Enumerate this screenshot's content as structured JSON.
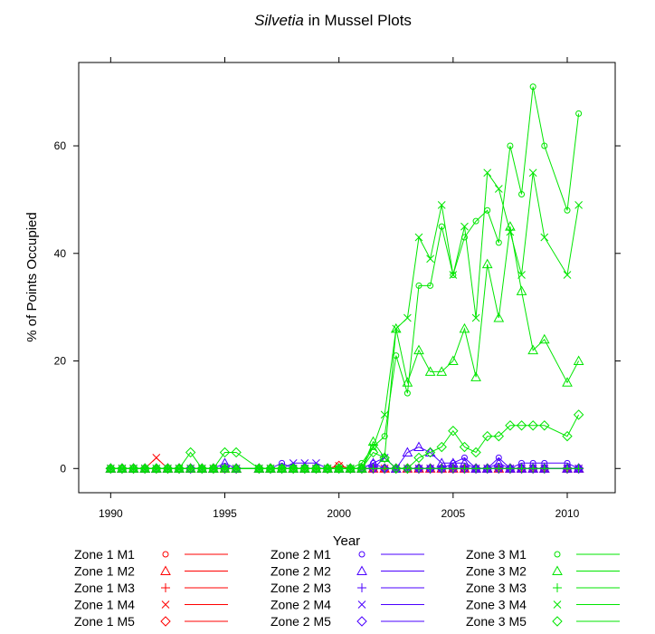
{
  "chart_data": {
    "type": "line",
    "title_italic": "Silvetia",
    "title_rest": " in Mussel Plots",
    "xlabel": "Year",
    "ylabel": "% of Points Occupied",
    "xlim": [
      1988.6,
      2012.1
    ],
    "ylim": [
      -4.5,
      75.5
    ],
    "xticks": [
      1990,
      1995,
      2000,
      2005,
      2010
    ],
    "yticks": [
      0,
      20,
      40,
      60
    ],
    "colors": {
      "zone1": "#ff0000",
      "zone2": "#4b00ff",
      "zone3": "#00e600"
    },
    "legend": [
      {
        "label": "Zone 1 M1",
        "zone": "zone1",
        "marker": "circle"
      },
      {
        "label": "Zone 1 M2",
        "zone": "zone1",
        "marker": "triangle"
      },
      {
        "label": "Zone 1 M3",
        "zone": "zone1",
        "marker": "plus"
      },
      {
        "label": "Zone 1 M4",
        "zone": "zone1",
        "marker": "cross"
      },
      {
        "label": "Zone 1 M5",
        "zone": "zone1",
        "marker": "diamond"
      },
      {
        "label": "Zone 2 M1",
        "zone": "zone2",
        "marker": "circle"
      },
      {
        "label": "Zone 2 M2",
        "zone": "zone2",
        "marker": "triangle"
      },
      {
        "label": "Zone 2 M3",
        "zone": "zone2",
        "marker": "plus"
      },
      {
        "label": "Zone 2 M4",
        "zone": "zone2",
        "marker": "cross"
      },
      {
        "label": "Zone 2 M5",
        "zone": "zone2",
        "marker": "diamond"
      },
      {
        "label": "Zone 3 M1",
        "zone": "zone3",
        "marker": "circle"
      },
      {
        "label": "Zone 3 M2",
        "zone": "zone3",
        "marker": "triangle"
      },
      {
        "label": "Zone 3 M3",
        "zone": "zone3",
        "marker": "plus"
      },
      {
        "label": "Zone 3 M4",
        "zone": "zone3",
        "marker": "cross"
      },
      {
        "label": "Zone 3 M5",
        "zone": "zone3",
        "marker": "diamond"
      }
    ],
    "x": [
      1990,
      1990.5,
      1991,
      1991.5,
      1992,
      1992.5,
      1993,
      1993.5,
      1994,
      1994.5,
      1995,
      1995.5,
      1996.5,
      1997,
      1997.5,
      1998,
      1998.5,
      1999,
      1999.5,
      2000,
      2000.5,
      2001,
      2001.5,
      2002,
      2002.5,
      2003,
      2003.5,
      2004,
      2004.5,
      2005,
      2005.5,
      2006,
      2006.5,
      2007,
      2007.5,
      2008,
      2008.5,
      2009,
      2010,
      2010.5
    ],
    "series": [
      {
        "name": "Zone 1 M1",
        "values": [
          0,
          0,
          0,
          0,
          0,
          0,
          0,
          0,
          0,
          0,
          0,
          0,
          0,
          0,
          0,
          0,
          0,
          0,
          0,
          0,
          0,
          0,
          0,
          0,
          0,
          0,
          0,
          0,
          0,
          0,
          0,
          0,
          0,
          0,
          0,
          0,
          0,
          0,
          0,
          0
        ]
      },
      {
        "name": "Zone 1 M2",
        "values": [
          0,
          0,
          0,
          0,
          0,
          0,
          0,
          0,
          0,
          0,
          0,
          0,
          0,
          0,
          0,
          0,
          0,
          0,
          0,
          0,
          0,
          0,
          0,
          0,
          0,
          0,
          0,
          0,
          0,
          0,
          0,
          0,
          0,
          0,
          0,
          0,
          0,
          0,
          0,
          0
        ]
      },
      {
        "name": "Zone 1 M3",
        "values": [
          0,
          0,
          0,
          0,
          0,
          0,
          0,
          0,
          0,
          0,
          0,
          0,
          0,
          0,
          0,
          0,
          0,
          0,
          0,
          0,
          0,
          0,
          0,
          0,
          0,
          0,
          0,
          0,
          0,
          0,
          0,
          0,
          0,
          0,
          0,
          0,
          0,
          0,
          0,
          0
        ]
      },
      {
        "name": "Zone 1 M4",
        "values": [
          0,
          0,
          0,
          0,
          2,
          0,
          0,
          0,
          0,
          0,
          0,
          0,
          0,
          0,
          0,
          0,
          0,
          0,
          0,
          0.5,
          0,
          0,
          0,
          0,
          0,
          0,
          0,
          0,
          0,
          0,
          0,
          0,
          0,
          0,
          0,
          0,
          0,
          0,
          0,
          0
        ]
      },
      {
        "name": "Zone 1 M5",
        "values": [
          0,
          0,
          0,
          0,
          0,
          0,
          0,
          0,
          0,
          0,
          0,
          0,
          0,
          0,
          0,
          0,
          0,
          0,
          0,
          0.5,
          0,
          0,
          0,
          0,
          0,
          0,
          0,
          0,
          0,
          0,
          0,
          0,
          0,
          0,
          0,
          0,
          0,
          0,
          0,
          0
        ]
      },
      {
        "name": "Zone 2 M1",
        "values": [
          0,
          0,
          0,
          0,
          0,
          0,
          0,
          0,
          0,
          0,
          0,
          0,
          0,
          0,
          1,
          0,
          0,
          0,
          0,
          0,
          0,
          0,
          1,
          0,
          0,
          0,
          0,
          0,
          0,
          1,
          2,
          0,
          0,
          2,
          0,
          1,
          1,
          1,
          1,
          0
        ]
      },
      {
        "name": "Zone 2 M2",
        "values": [
          0,
          0,
          0,
          0,
          0,
          0,
          0,
          0,
          0,
          0,
          1,
          0,
          0,
          0,
          0,
          0,
          0,
          0,
          0,
          0,
          0,
          0,
          1,
          2,
          0,
          3,
          4,
          3,
          1,
          1,
          1,
          0,
          0,
          1,
          0,
          0,
          0,
          0,
          0,
          0
        ]
      },
      {
        "name": "Zone 2 M3",
        "values": [
          0,
          0,
          0,
          0,
          0,
          0,
          0,
          0,
          0,
          0,
          0,
          0,
          0,
          0,
          0,
          0,
          0,
          0,
          0,
          0,
          0,
          0,
          0,
          0,
          0,
          0,
          0,
          0,
          0,
          0,
          0,
          0,
          0,
          0,
          0,
          0,
          0,
          0,
          0,
          0
        ]
      },
      {
        "name": "Zone 2 M4",
        "values": [
          0,
          0,
          0,
          0,
          0,
          0,
          0,
          0,
          0,
          0,
          0,
          0,
          0,
          0,
          0,
          1,
          1,
          1,
          0,
          0,
          0,
          0,
          0,
          2,
          0,
          0,
          0,
          0,
          0,
          0,
          0,
          0,
          0,
          0,
          0,
          0,
          0,
          0,
          0,
          0
        ]
      },
      {
        "name": "Zone 2 M5",
        "values": [
          0,
          0,
          0,
          0,
          0,
          0,
          0,
          0,
          0,
          0,
          0,
          0,
          0,
          0,
          0,
          0,
          0,
          0,
          0,
          0,
          0,
          0,
          0,
          0,
          0,
          0,
          0,
          0,
          0,
          0,
          0,
          0,
          0,
          0,
          0,
          0,
          0,
          0,
          0,
          0
        ]
      },
      {
        "name": "Zone 3 M1",
        "values": [
          0,
          0,
          0,
          0,
          0,
          0,
          0,
          0,
          0,
          0,
          0,
          0,
          0,
          0,
          0,
          0,
          0,
          0,
          0,
          0,
          0,
          1,
          4,
          6,
          21,
          14,
          34,
          34,
          45,
          36,
          43,
          46,
          48,
          42,
          60,
          51,
          71,
          60,
          48,
          66
        ]
      },
      {
        "name": "Zone 3 M2",
        "values": [
          0,
          0,
          0,
          0,
          0,
          0,
          0,
          0,
          0,
          0,
          0,
          0,
          0,
          0,
          0,
          0,
          0,
          0,
          0,
          0,
          0,
          0,
          5,
          2,
          26,
          16,
          22,
          18,
          18,
          20,
          26,
          17,
          38,
          28,
          45,
          33,
          22,
          24,
          16,
          20
        ]
      },
      {
        "name": "Zone 3 M3",
        "values": [
          0,
          0,
          0,
          0,
          0,
          0,
          0,
          0,
          0,
          0,
          0,
          0,
          0,
          0,
          0,
          0,
          0,
          0,
          0,
          0,
          0,
          0,
          0,
          0,
          0,
          0,
          0,
          0,
          0,
          0,
          0,
          0,
          0,
          0,
          0,
          0,
          0,
          0,
          0,
          0
        ]
      },
      {
        "name": "Zone 3 M4",
        "values": [
          0,
          0,
          0,
          0,
          0,
          0,
          0,
          0,
          0,
          0,
          0,
          0,
          0,
          0,
          0,
          0,
          0,
          0,
          0,
          0,
          0,
          0,
          4,
          10,
          26,
          28,
          43,
          39,
          49,
          36,
          45,
          28,
          55,
          52,
          44,
          36,
          55,
          43,
          36,
          49
        ]
      },
      {
        "name": "Zone 3 M5",
        "values": [
          0,
          0,
          0,
          0,
          0,
          0,
          0,
          3,
          0,
          0,
          3,
          3,
          0,
          0,
          0,
          0,
          0,
          0,
          0,
          0,
          0,
          0,
          3,
          2,
          0,
          0,
          2,
          3,
          4,
          7,
          4,
          3,
          6,
          6,
          8,
          8,
          8,
          8,
          6,
          10
        ]
      }
    ]
  }
}
